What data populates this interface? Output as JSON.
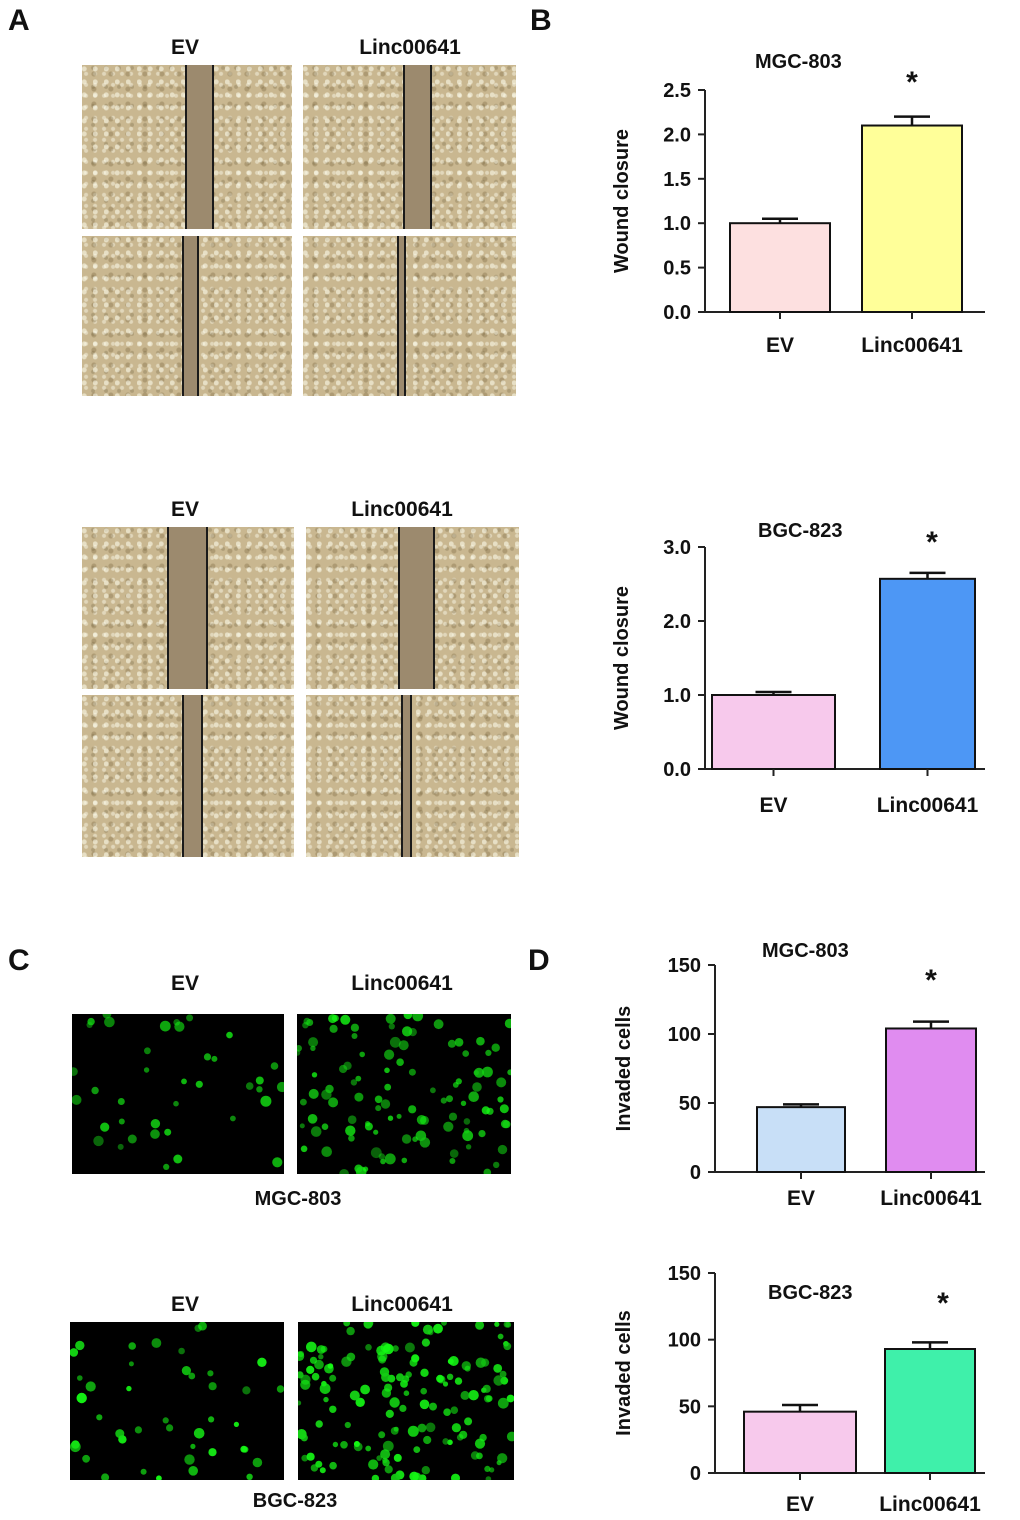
{
  "panels": {
    "A": "A",
    "B": "B",
    "C": "C",
    "D": "D"
  },
  "panelA": {
    "top": {
      "col_left": "EV",
      "col_right": "Linc00641"
    },
    "bottom": {
      "col_left": "EV",
      "col_right": "Linc00641"
    }
  },
  "panelC": {
    "top": {
      "col_left": "EV",
      "col_right": "Linc00641",
      "cell_line": "MGC-803"
    },
    "bottom": {
      "col_left": "EV",
      "col_right": "Linc00641",
      "cell_line": "BGC-823"
    }
  },
  "chart_data": [
    {
      "type": "bar",
      "title": "MGC-803",
      "ylabel": "Wound closure",
      "categories": [
        "EV",
        "Linc00641"
      ],
      "values": [
        1.0,
        2.1
      ],
      "errors": [
        0.05,
        0.1
      ],
      "ylim": [
        0,
        2.5
      ],
      "yticks": [
        "0.0",
        "0.5",
        "1.0",
        "1.5",
        "2.0",
        "2.5"
      ],
      "bar_colors": [
        "#fde0e0",
        "#ffff99"
      ],
      "significance": [
        "",
        "*"
      ]
    },
    {
      "type": "bar",
      "title": "BGC-823",
      "ylabel": "Wound closure",
      "categories": [
        "EV",
        "Linc00641"
      ],
      "values": [
        1.0,
        2.57
      ],
      "errors": [
        0.04,
        0.08
      ],
      "ylim": [
        0,
        3.0
      ],
      "yticks": [
        "0.0",
        "1.0",
        "2.0",
        "3.0"
      ],
      "bar_colors": [
        "#f7c9ec",
        "#4d97f5"
      ],
      "significance": [
        "",
        "*"
      ]
    },
    {
      "type": "bar",
      "title": "MGC-803",
      "ylabel": "Invaded cells",
      "categories": [
        "EV",
        "Linc00641"
      ],
      "values": [
        47,
        104
      ],
      "errors": [
        2,
        5
      ],
      "ylim": [
        0,
        150
      ],
      "yticks": [
        "0",
        "50",
        "100",
        "150"
      ],
      "bar_colors": [
        "#c8dff7",
        "#e08cf0"
      ],
      "significance": [
        "",
        "*"
      ]
    },
    {
      "type": "bar",
      "title": "BGC-823",
      "ylabel": "Invaded cells",
      "categories": [
        "EV",
        "Linc00641"
      ],
      "values": [
        46,
        93
      ],
      "errors": [
        5,
        5
      ],
      "ylim": [
        0,
        150
      ],
      "yticks": [
        "0",
        "50",
        "100",
        "150"
      ],
      "bar_colors": [
        "#f7c9ec",
        "#3ff0aa"
      ],
      "significance": [
        "",
        "*"
      ]
    }
  ]
}
